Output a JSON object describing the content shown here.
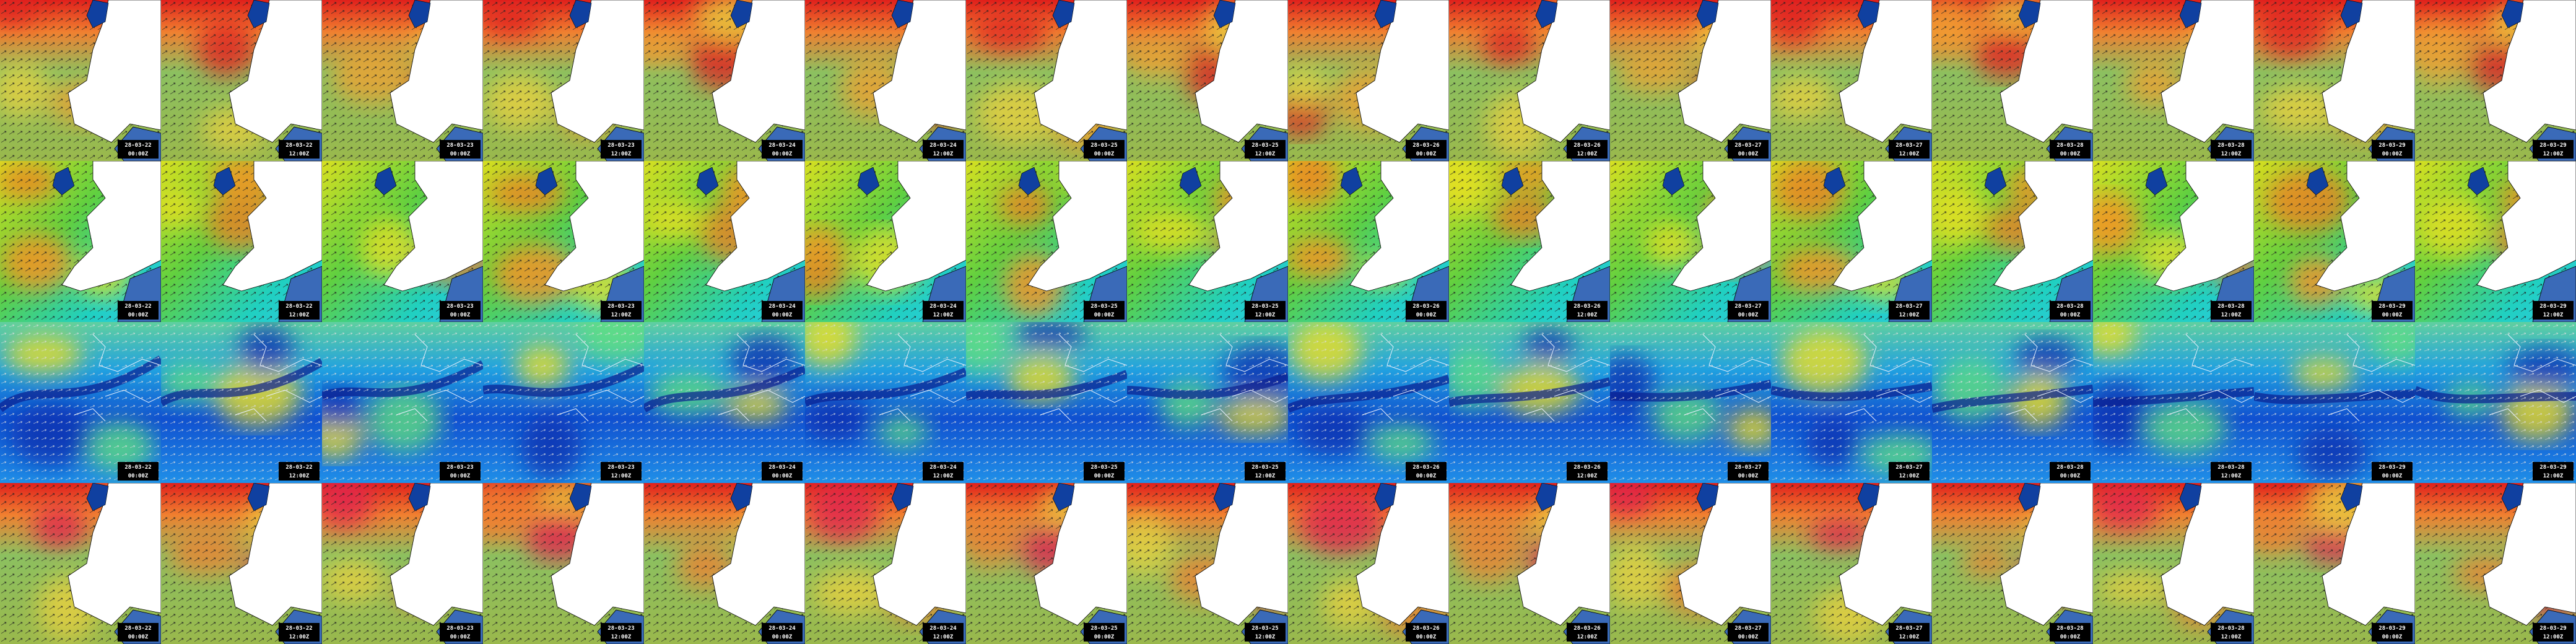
{
  "rows": [
    {
      "tiles": [
        {
          "date": "28-03-22",
          "time": "00:00Z"
        },
        {
          "date": "28-03-22",
          "time": "12:00Z"
        },
        {
          "date": "28-03-23",
          "time": "00:00Z"
        },
        {
          "date": "28-03-23",
          "time": "12:00Z"
        },
        {
          "date": "28-03-24",
          "time": "00:00Z"
        },
        {
          "date": "28-03-24",
          "time": "12:00Z"
        },
        {
          "date": "28-03-25",
          "time": "00:00Z"
        },
        {
          "date": "28-03-25",
          "time": "12:00Z"
        },
        {
          "date": "28-03-26",
          "time": "00:00Z"
        },
        {
          "date": "28-03-26",
          "time": "12:00Z"
        },
        {
          "date": "28-03-27",
          "time": "00:00Z"
        },
        {
          "date": "28-03-27",
          "time": "12:00Z"
        },
        {
          "date": "28-03-28",
          "time": "00:00Z"
        },
        {
          "date": "28-03-28",
          "time": "12:00Z"
        },
        {
          "date": "28-03-29",
          "time": "00:00Z"
        },
        {
          "date": "28-03-29",
          "time": "12:00Z"
        }
      ]
    },
    {
      "tiles": [
        {
          "date": "28-03-22",
          "time": "00:00Z"
        },
        {
          "date": "28-03-22",
          "time": "12:00Z"
        },
        {
          "date": "28-03-23",
          "time": "00:00Z"
        },
        {
          "date": "28-03-23",
          "time": "12:00Z"
        },
        {
          "date": "28-03-24",
          "time": "00:00Z"
        },
        {
          "date": "28-03-24",
          "time": "12:00Z"
        },
        {
          "date": "28-03-25",
          "time": "00:00Z"
        },
        {
          "date": "28-03-25",
          "time": "12:00Z"
        },
        {
          "date": "28-03-26",
          "time": "00:00Z"
        },
        {
          "date": "28-03-26",
          "time": "12:00Z"
        },
        {
          "date": "28-03-27",
          "time": "00:00Z"
        },
        {
          "date": "28-03-27",
          "time": "12:00Z"
        },
        {
          "date": "28-03-28",
          "time": "00:00Z"
        },
        {
          "date": "28-03-28",
          "time": "12:00Z"
        },
        {
          "date": "28-03-29",
          "time": "00:00Z"
        },
        {
          "date": "28-03-29",
          "time": "12:00Z"
        }
      ]
    },
    {
      "tiles": [
        {
          "date": "28-03-22",
          "time": "00:00Z"
        },
        {
          "date": "28-03-22",
          "time": "12:00Z"
        },
        {
          "date": "28-03-23",
          "time": "00:00Z"
        },
        {
          "date": "28-03-23",
          "time": "12:00Z"
        },
        {
          "date": "28-03-24",
          "time": "00:00Z"
        },
        {
          "date": "28-03-24",
          "time": "12:00Z"
        },
        {
          "date": "28-03-25",
          "time": "00:00Z"
        },
        {
          "date": "28-03-25",
          "time": "12:00Z"
        },
        {
          "date": "28-03-26",
          "time": "00:00Z"
        },
        {
          "date": "28-03-26",
          "time": "12:00Z"
        },
        {
          "date": "28-03-27",
          "time": "00:00Z"
        },
        {
          "date": "28-03-27",
          "time": "12:00Z"
        },
        {
          "date": "28-03-28",
          "time": "00:00Z"
        },
        {
          "date": "28-03-28",
          "time": "12:00Z"
        },
        {
          "date": "28-03-29",
          "time": "00:00Z"
        },
        {
          "date": "28-03-29",
          "time": "12:00Z"
        }
      ]
    },
    {
      "tiles": [
        {
          "date": "28-03-22",
          "time": "00:00Z"
        },
        {
          "date": "28-03-22",
          "time": "12:00Z"
        },
        {
          "date": "28-03-23",
          "time": "00:00Z"
        },
        {
          "date": "28-03-23",
          "time": "12:00Z"
        },
        {
          "date": "28-03-24",
          "time": "00:00Z"
        },
        {
          "date": "28-03-24",
          "time": "12:00Z"
        },
        {
          "date": "28-03-25",
          "time": "00:00Z"
        },
        {
          "date": "28-03-25",
          "time": "12:00Z"
        },
        {
          "date": "28-03-26",
          "time": "00:00Z"
        },
        {
          "date": "28-03-26",
          "time": "12:00Z"
        },
        {
          "date": "28-03-27",
          "time": "00:00Z"
        },
        {
          "date": "28-03-27",
          "time": "12:00Z"
        },
        {
          "date": "28-03-28",
          "time": "00:00Z"
        },
        {
          "date": "28-03-28",
          "time": "12:00Z"
        },
        {
          "date": "28-03-29",
          "time": "00:00Z"
        },
        {
          "date": "28-03-29",
          "time": "12:00Z"
        }
      ]
    }
  ]
}
